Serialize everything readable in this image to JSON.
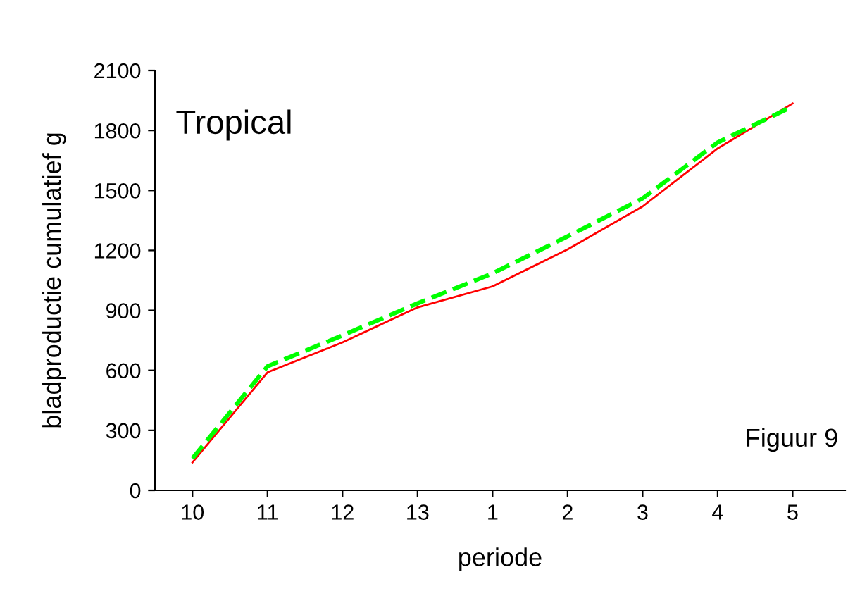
{
  "chart_data": {
    "type": "line",
    "xlabel": "periode",
    "ylabel": "bladproductie cumulatief g",
    "categories": [
      "10",
      "11",
      "12",
      "13",
      "1",
      "2",
      "3",
      "4",
      "5"
    ],
    "series": [
      {
        "color": "#ff0000",
        "line_style": "solid",
        "values": [
          140,
          590,
          740,
          915,
          1020,
          1205,
          1420,
          1710,
          1935
        ]
      },
      {
        "color": "#00ff00",
        "line_style": "dashed",
        "values": [
          160,
          620,
          775,
          935,
          1085,
          1270,
          1460,
          1740,
          1920
        ]
      }
    ],
    "ylim": [
      0,
      2100
    ],
    "yticks": [
      0,
      300,
      600,
      900,
      1200,
      1500,
      1800,
      2100
    ],
    "grid": false,
    "legend": false,
    "marker": "none",
    "annotations": [
      "Tropical",
      "Figuur 9"
    ]
  }
}
